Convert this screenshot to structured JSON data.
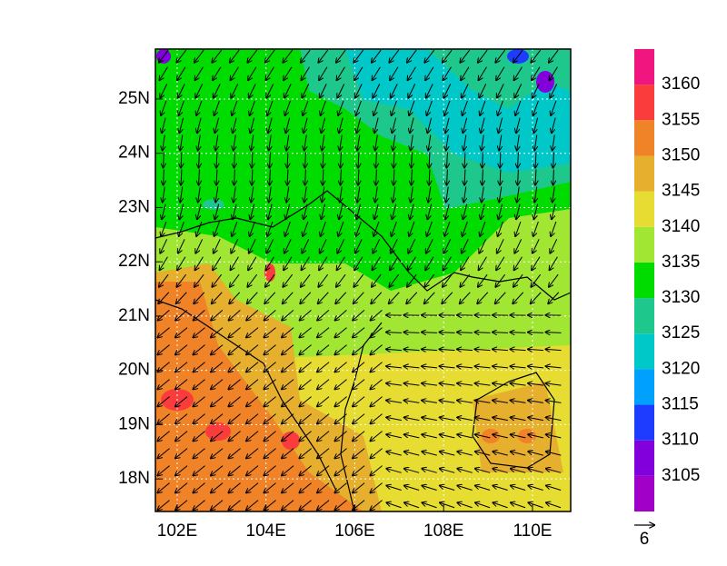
{
  "map": {
    "lon_range": [
      101.51,
      110.86
    ],
    "lat_range": [
      17.4,
      25.92
    ],
    "lon_ticks": [
      {
        "value": 102,
        "label": "102E"
      },
      {
        "value": 104,
        "label": "104E"
      },
      {
        "value": 106,
        "label": "106E"
      },
      {
        "value": 108,
        "label": "108E"
      },
      {
        "value": 110,
        "label": "110E"
      }
    ],
    "lat_ticks": [
      {
        "value": 18,
        "label": "18N"
      },
      {
        "value": 19,
        "label": "19N"
      },
      {
        "value": 20,
        "label": "20N"
      },
      {
        "value": 21,
        "label": "21N"
      },
      {
        "value": 22,
        "label": "22N"
      },
      {
        "value": 23,
        "label": "23N"
      },
      {
        "value": 24,
        "label": "24N"
      },
      {
        "value": 25,
        "label": "25N"
      }
    ],
    "colorbar": {
      "levels": [
        3105,
        3110,
        3115,
        3120,
        3125,
        3130,
        3135,
        3140,
        3145,
        3150,
        3155,
        3160
      ],
      "colors": [
        "#a000c8",
        "#8200dc",
        "#1e3cff",
        "#00a0ff",
        "#00c8c8",
        "#1ec88c",
        "#00dc00",
        "#a0e632",
        "#e6dc32",
        "#e6af2d",
        "#f08228",
        "#fa3c3c",
        "#f0157f"
      ]
    },
    "reference_vector": {
      "label": "6"
    }
  }
}
